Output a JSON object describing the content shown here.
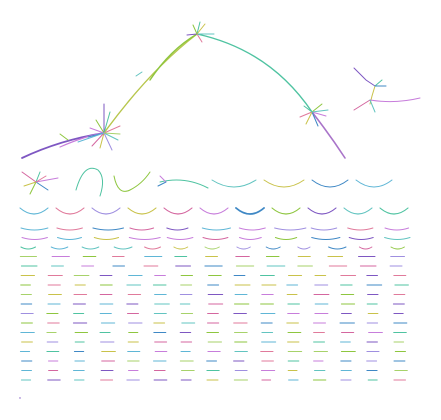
{
  "palette": [
    "#8ec63f",
    "#5fb6d6",
    "#c77ddb",
    "#4fc3a1",
    "#c9c24a",
    "#7e57c2",
    "#e07a9b",
    "#3f88c5",
    "#a7d26a",
    "#d4669f",
    "#62c4c0",
    "#9f8fe0"
  ],
  "diagram": {
    "components": [
      {
        "name": "main-tree",
        "kind": "large-tree"
      },
      {
        "name": "side-tree",
        "kind": "small-tree"
      },
      {
        "name": "row-1-components",
        "kind": "medium-arcs",
        "count": 8
      },
      {
        "name": "row-2-components",
        "kind": "arcs",
        "count": 11
      },
      {
        "name": "small-component-grid",
        "kind": "dashes",
        "rows": 17
      }
    ]
  }
}
